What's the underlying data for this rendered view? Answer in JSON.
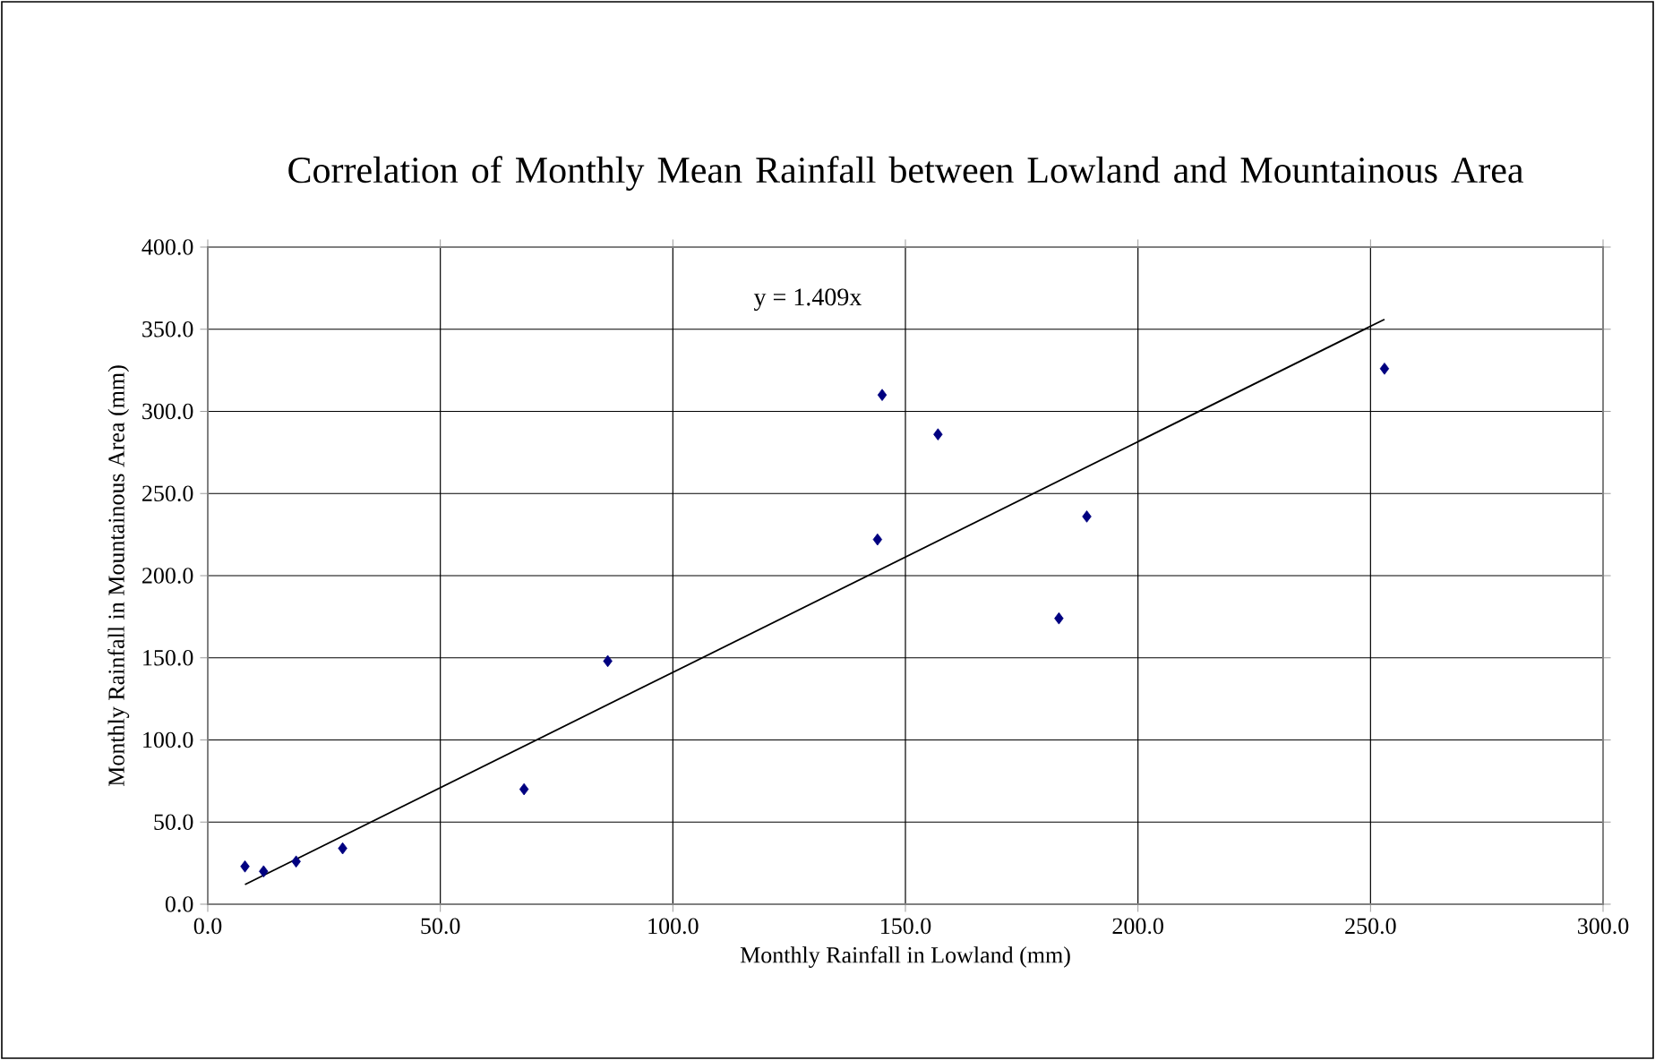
{
  "chart_data": {
    "type": "scatter",
    "title": "Correlation of Monthly Mean Rainfall between Lowland and Mountainous Area",
    "xlabel": "Monthly Rainfall in Lowland (mm)",
    "ylabel": "Monthly Rainfall in Mountainous Area (mm)",
    "x": [
      8,
      12,
      19,
      29,
      68,
      86,
      144,
      145,
      157,
      183,
      189,
      253
    ],
    "series": [
      {
        "color": "#000080",
        "values": [
          23,
          20,
          26,
          34,
          70,
          148,
          222,
          310,
          286,
          174,
          236,
          326
        ]
      },
      {
        "type": "line",
        "x": [
          8,
          253
        ],
        "values": [
          12,
          356
        ],
        "color": "#000000",
        "marker": "none"
      }
    ],
    "annotations": [
      "y = 1.409x"
    ],
    "xlim": [
      0,
      300
    ],
    "ylim": [
      0,
      400
    ],
    "xticks": [
      {
        "value": 0,
        "label": "0.0"
      },
      {
        "value": 50,
        "label": "50.0"
      },
      {
        "value": 100,
        "label": "100.0"
      },
      {
        "value": 150,
        "label": "150.0"
      },
      {
        "value": 200,
        "label": "200.0"
      },
      {
        "value": 250,
        "label": "250.0"
      },
      {
        "value": 300,
        "label": "300.0"
      }
    ],
    "yticks": [
      {
        "value": 0,
        "label": "0.0"
      },
      {
        "value": 50,
        "label": "50.0"
      },
      {
        "value": 100,
        "label": "100.0"
      },
      {
        "value": 150,
        "label": "150.0"
      },
      {
        "value": 200,
        "label": "200.0"
      },
      {
        "value": 250,
        "label": "250.0"
      },
      {
        "value": 300,
        "label": "300.0"
      },
      {
        "value": 350,
        "label": "350.0"
      },
      {
        "value": 400,
        "label": "400.0"
      }
    ],
    "grid": true,
    "marker": "diamond"
  }
}
